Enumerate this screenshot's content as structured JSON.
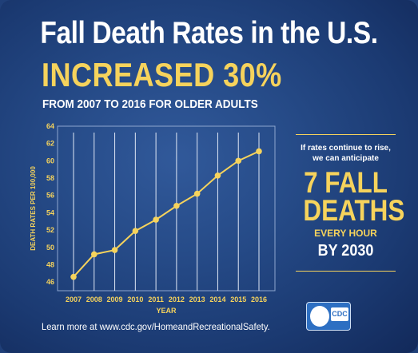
{
  "header": {
    "title": "Fall Death Rates in the U.S.",
    "headline": "INCREASED 30%",
    "subtitle": "FROM 2007 TO 2016 FOR OLDER ADULTS"
  },
  "sidebar": {
    "intro": "If rates continue to rise, we can anticipate",
    "big_line1": "7 FALL",
    "big_line2": "DEATHS",
    "every_hour": "EVERY HOUR",
    "by_year": "BY 2030"
  },
  "footer": {
    "text": "Learn more at www.cdc.gov/HomeandRecreationalSafety."
  },
  "logo": {
    "text": "CDC"
  },
  "colors": {
    "accent": "#f6d35c",
    "background": "#264b88",
    "gridline": "#ffffff"
  },
  "chart_data": {
    "type": "line",
    "x": [
      2007,
      2008,
      2009,
      2010,
      2011,
      2012,
      2013,
      2014,
      2015,
      2016
    ],
    "series": [
      {
        "values": [
          46.6,
          49.2,
          49.7,
          51.9,
          53.2,
          54.8,
          56.2,
          58.3,
          60.0,
          61.1
        ]
      }
    ],
    "xlabel": "YEAR",
    "ylabel": "DEATH RATES PER 100,000",
    "ylim": [
      45,
      64
    ],
    "yticks": [
      46,
      48,
      50,
      52,
      54,
      56,
      58,
      60,
      62,
      64
    ],
    "grid": "vertical",
    "legend": "none"
  }
}
